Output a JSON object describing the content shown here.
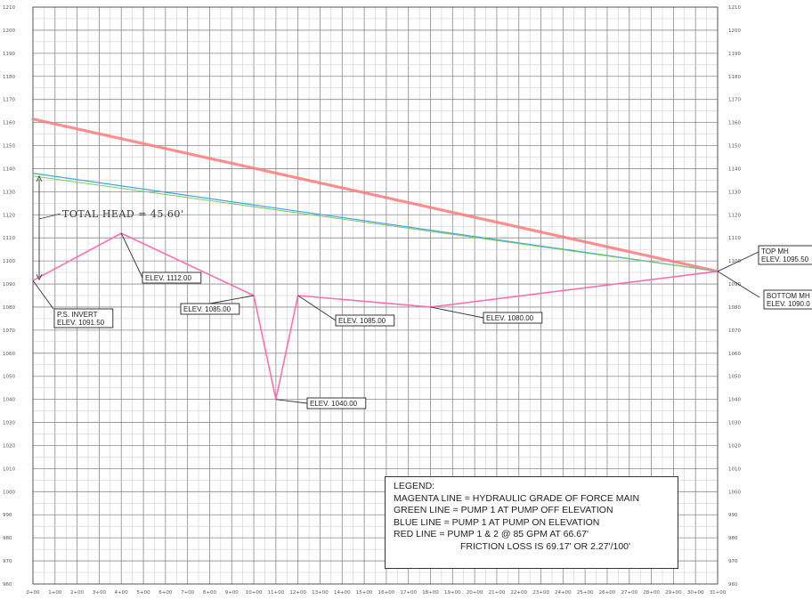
{
  "chart_data": {
    "type": "line",
    "xlabel": "",
    "ylabel": "",
    "xlim": [
      0,
      31
    ],
    "ylim": [
      960,
      1210
    ],
    "y_tick_step": 10,
    "x_ticks": [
      {
        "v": 0,
        "label": "0+00"
      },
      {
        "v": 1,
        "label": "1+00"
      },
      {
        "v": 2,
        "label": "2+00"
      },
      {
        "v": 3,
        "label": "3+00"
      },
      {
        "v": 4,
        "label": "4+00"
      },
      {
        "v": 5,
        "label": "5+00"
      },
      {
        "v": 6,
        "label": "6+00"
      },
      {
        "v": 7,
        "label": "7+00"
      },
      {
        "v": 8,
        "label": "8+00"
      },
      {
        "v": 9,
        "label": "9+00"
      },
      {
        "v": 10,
        "label": "10+00"
      },
      {
        "v": 11,
        "label": "11+00"
      },
      {
        "v": 12,
        "label": "12+00"
      },
      {
        "v": 13,
        "label": "13+00"
      },
      {
        "v": 14,
        "label": "14+00"
      },
      {
        "v": 15,
        "label": "15+00"
      },
      {
        "v": 16,
        "label": "16+00"
      },
      {
        "v": 17,
        "label": "17+00"
      },
      {
        "v": 18,
        "label": "18+00"
      },
      {
        "v": 19,
        "label": "19+00"
      },
      {
        "v": 20,
        "label": "20+00"
      },
      {
        "v": 21,
        "label": "21+00"
      },
      {
        "v": 22,
        "label": "22+00"
      },
      {
        "v": 23,
        "label": "23+00"
      },
      {
        "v": 24,
        "label": "24+00"
      },
      {
        "v": 25,
        "label": "25+00"
      },
      {
        "v": 26,
        "label": "26+00"
      },
      {
        "v": 27,
        "label": "27+00"
      },
      {
        "v": 28,
        "label": "28+00"
      },
      {
        "v": 29,
        "label": "29+00"
      },
      {
        "v": 30,
        "label": "30+00"
      },
      {
        "v": 31,
        "label": "31+00"
      }
    ],
    "series": [
      {
        "key": "ground",
        "color": "#ff6fb0",
        "width": 1.6,
        "opacity": 1,
        "x": [
          0,
          4,
          10,
          11,
          12,
          18,
          31
        ],
        "y": [
          1091.5,
          1112,
          1085,
          1040,
          1085,
          1080,
          1095.5
        ]
      },
      {
        "key": "red",
        "color": "#ff7a7a",
        "width": 3.2,
        "opacity": 0.85,
        "x": [
          0,
          31
        ],
        "y": [
          1161.5,
          1095.5
        ]
      },
      {
        "key": "blue",
        "color": "#3fa6d9",
        "width": 1.2,
        "opacity": 1,
        "x": [
          0,
          31
        ],
        "y": [
          1138,
          1095.5
        ]
      },
      {
        "key": "green",
        "color": "#7ac96a",
        "width": 1.0,
        "opacity": 1,
        "x": [
          0,
          31
        ],
        "y": [
          1136.8,
          1095.5
        ]
      }
    ],
    "annotations": [
      {
        "key": "elev1112",
        "text": "ELEV. 1112.00",
        "x": 4,
        "y": 1112,
        "bx": 160,
        "by": 306
      },
      {
        "key": "elev1085a",
        "text": "ELEV. 1085.00",
        "x": 10,
        "y": 1085,
        "bx": 203,
        "by": 341
      },
      {
        "key": "elev1040",
        "text": "ELEV. 1040.00",
        "x": 11,
        "y": 1040,
        "bx": 345,
        "by": 447
      },
      {
        "key": "elev1085b",
        "text": "ELEV. 1085.00",
        "x": 12,
        "y": 1085,
        "bx": 377,
        "by": 354
      },
      {
        "key": "elev1080",
        "text": "ELEV. 1080.00",
        "x": 18,
        "y": 1080,
        "bx": 543,
        "by": 351
      }
    ],
    "ps_invert": {
      "line1": "P.S. INVERT",
      "line2": "ELEV. 1091.50"
    },
    "top_mh": {
      "line1": "TOP MH",
      "line2": "ELEV. 1095.50"
    },
    "bottom_mh": {
      "line1": "BOTTOM MH",
      "line2": "ELEV. 1090.0"
    },
    "total_head": "TOTAL HEAD = 45.60'"
  },
  "legend": {
    "title": "LEGEND:",
    "magenta": "MAGENTA LINE = HYDRAULIC GRADE OF FORCE MAIN",
    "green": "GREEN LINE = PUMP 1 AT PUMP OFF ELEVATION",
    "blue": "BLUE LINE = PUMP 1 AT PUMP ON ELEVATION",
    "red": "RED LINE = PUMP 1 & 2 @ 85 GPM AT 66.67'",
    "friction": "FRICTION LOSS IS 69.17' OR 2.27'/100'"
  }
}
